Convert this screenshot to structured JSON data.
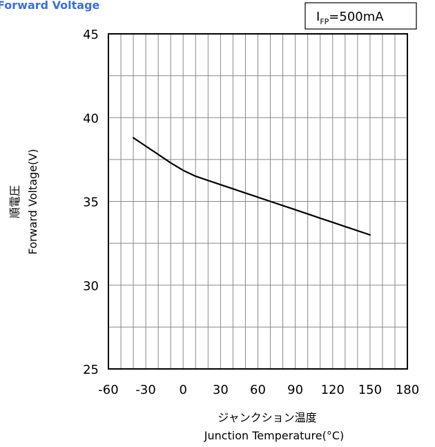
{
  "chart_data": {
    "type": "line",
    "title": "Forward Voltage",
    "condition": {
      "main": "I",
      "sub": "FP",
      "rest": "=500mA"
    },
    "xlabel_jp": "ジャンクション温度",
    "xlabel": "Junction Temperature(°C)",
    "ylabel_jp": "順電圧",
    "ylabel": "Forward Voltage(V)",
    "xlim": [
      -60,
      180
    ],
    "ylim": [
      25,
      45
    ],
    "xticks": [
      -60,
      -30,
      0,
      30,
      60,
      90,
      120,
      150,
      180
    ],
    "yticks": [
      25,
      30,
      35,
      40,
      45
    ],
    "grid": true,
    "series": [
      {
        "color": "#000000",
        "x": [
          -40,
          -30,
          -20,
          -10,
          0,
          10,
          20,
          30,
          40,
          50,
          60,
          70,
          80,
          90,
          100,
          110,
          120,
          130,
          140,
          150
        ],
        "y": [
          38.8,
          38.3,
          37.8,
          37.3,
          36.85,
          36.5,
          36.25,
          36.0,
          35.75,
          35.5,
          35.25,
          35.0,
          34.75,
          34.5,
          34.25,
          34.0,
          33.75,
          33.5,
          33.25,
          33.0
        ]
      }
    ]
  }
}
